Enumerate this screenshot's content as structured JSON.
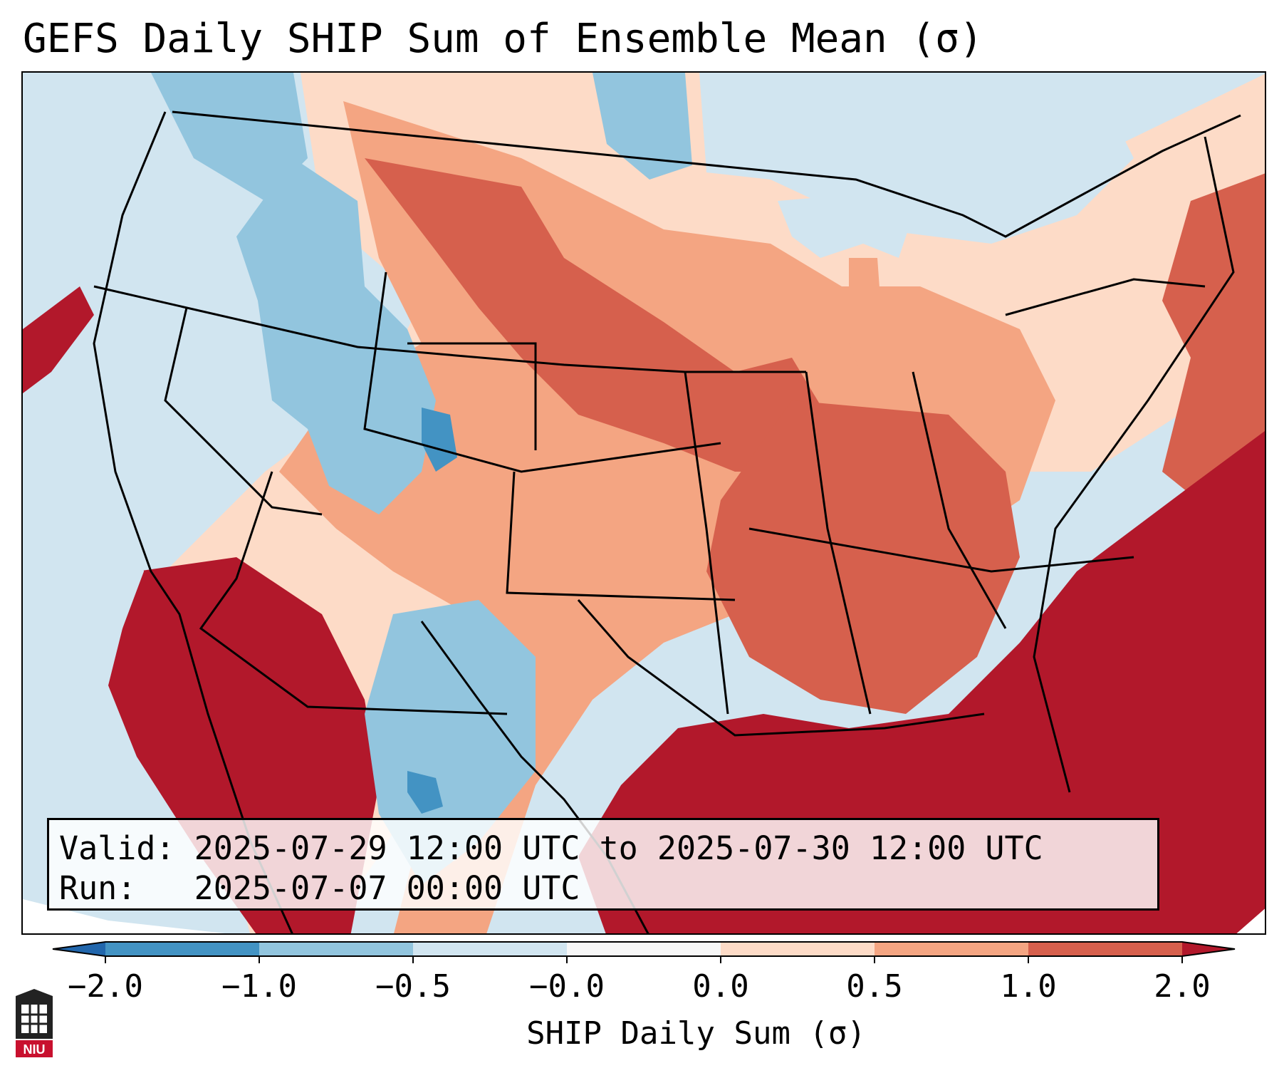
{
  "title": "GEFS Daily SHIP Sum of Ensemble Mean (σ)",
  "info": {
    "valid_line": "Valid: 2025-07-29 12:00 UTC to 2025-07-30 12:00 UTC",
    "run_line": "Run:   2025-07-07 00:00 UTC"
  },
  "colorbar": {
    "label": "SHIP Daily Sum (σ)",
    "ticks": [
      "−2.0",
      "−1.0",
      "−0.5",
      "−0.0",
      "0.0",
      "0.5",
      "1.0",
      "2.0"
    ],
    "bins": [
      {
        "range": "< -2.0",
        "color": "#2166ac"
      },
      {
        "range": "-2.0 to -1.0",
        "color": "#4393c3"
      },
      {
        "range": "-1.0 to -0.5",
        "color": "#92c5de"
      },
      {
        "range": "-0.5 to -0.0",
        "color": "#d1e5f0"
      },
      {
        "range": "-0.0 to 0.0",
        "color": "#f7f7f7"
      },
      {
        "range": "0.0 to 0.5",
        "color": "#fddbc7"
      },
      {
        "range": "0.5 to 1.0",
        "color": "#f4a582"
      },
      {
        "range": "1.0 to 2.0",
        "color": "#d6604d"
      },
      {
        "range": "> 2.0",
        "color": "#b2182b"
      }
    ]
  },
  "logo": {
    "text": "NIU",
    "color": "#c8102e"
  }
}
